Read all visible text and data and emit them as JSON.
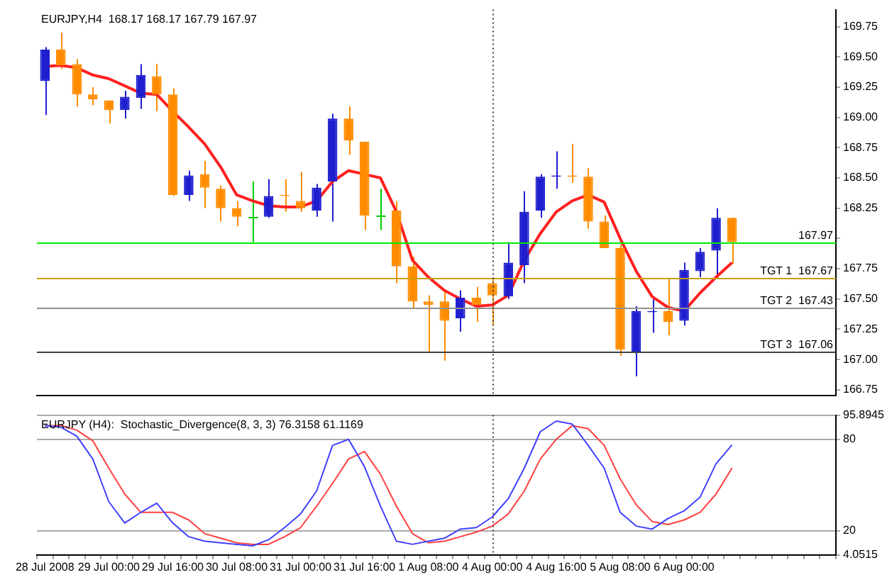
{
  "chart_data": [
    {
      "type": "candlestick",
      "title": "EURJPY,H4  168.17 168.17 167.79 167.97",
      "tick_labels": "y",
      "categories": [
        "28 Jul 2008",
        null,
        null,
        null,
        "29 Jul 00:00",
        null,
        null,
        null,
        "29 Jul 16:00",
        null,
        null,
        null,
        "30 Jul 08:00",
        null,
        null,
        null,
        "31 Jul 00:00",
        null,
        null,
        null,
        "31 Jul 16:00",
        null,
        null,
        null,
        "1 Aug 08:00",
        null,
        null,
        null,
        "4 Aug 00:00",
        null,
        null,
        null,
        "4 Aug 16:00",
        null,
        null,
        null,
        "5 Aug 08:00",
        null,
        null,
        null,
        "6 Aug 00:00",
        null,
        null,
        null,
        null,
        null,
        null,
        null,
        null,
        null
      ],
      "ohlc": [
        [
          169.3,
          169.58,
          169.02,
          169.56
        ],
        [
          169.56,
          169.7,
          169.4,
          169.43
        ],
        [
          169.44,
          169.48,
          169.09,
          169.19
        ],
        [
          169.19,
          169.25,
          169.1,
          169.15
        ],
        [
          169.14,
          169.14,
          168.95,
          169.06
        ],
        [
          169.06,
          169.22,
          168.99,
          169.17
        ],
        [
          169.16,
          169.44,
          169.07,
          169.35
        ],
        [
          169.34,
          169.44,
          169.05,
          169.19
        ],
        [
          169.19,
          169.24,
          168.35,
          168.36
        ],
        [
          168.36,
          168.56,
          168.31,
          168.52
        ],
        [
          168.53,
          168.64,
          168.25,
          168.42
        ],
        [
          168.41,
          168.44,
          168.14,
          168.25
        ],
        [
          168.25,
          168.31,
          168.1,
          168.18
        ],
        [
          168.18,
          168.47,
          167.97,
          168.18
        ],
        [
          168.18,
          168.49,
          168.17,
          168.35
        ],
        [
          168.36,
          168.49,
          168.22,
          168.35
        ],
        [
          168.31,
          168.55,
          168.22,
          168.25
        ],
        [
          168.23,
          168.45,
          168.18,
          168.42
        ],
        [
          168.47,
          169.03,
          168.14,
          168.99
        ],
        [
          168.99,
          169.09,
          168.69,
          168.81
        ],
        [
          168.8,
          168.8,
          168.07,
          168.19
        ],
        [
          168.19,
          168.41,
          168.07,
          168.19
        ],
        [
          168.23,
          168.31,
          167.63,
          167.77
        ],
        [
          167.77,
          167.85,
          167.42,
          167.48
        ],
        [
          167.48,
          167.53,
          167.06,
          167.45
        ],
        [
          167.48,
          167.58,
          166.99,
          167.32
        ],
        [
          167.34,
          167.57,
          167.23,
          167.51
        ],
        [
          167.51,
          167.6,
          167.31,
          167.45
        ],
        [
          167.63,
          167.68,
          167.28,
          167.53
        ],
        [
          167.52,
          167.97,
          167.5,
          167.8
        ],
        [
          167.78,
          168.39,
          167.63,
          168.22
        ],
        [
          168.23,
          168.53,
          168.17,
          168.51
        ],
        [
          168.51,
          168.72,
          168.41,
          168.52
        ],
        [
          168.52,
          168.78,
          168.46,
          168.51
        ],
        [
          168.51,
          168.58,
          168.08,
          168.14
        ],
        [
          168.14,
          168.19,
          167.92,
          167.92
        ],
        [
          167.92,
          167.95,
          167.03,
          167.08
        ],
        [
          167.06,
          167.44,
          166.86,
          167.4
        ],
        [
          167.39,
          167.5,
          167.22,
          167.4
        ],
        [
          167.4,
          167.67,
          167.2,
          167.31
        ],
        [
          167.32,
          167.8,
          167.28,
          167.74
        ],
        [
          167.73,
          167.92,
          167.68,
          167.89
        ],
        [
          167.9,
          168.25,
          167.67,
          168.17
        ],
        [
          168.17,
          168.17,
          167.79,
          167.97
        ],
        null,
        null,
        null,
        null,
        null,
        null
      ],
      "colors": [
        "#1f1fd0",
        "#ff8c00",
        "#ff8c00",
        "#ff8c00",
        "#ff8c00",
        "#1f1fd0",
        "#1f1fd0",
        "#ff8c00",
        "#ff8c00",
        "#1f1fd0",
        "#ff8c00",
        "#ff8c00",
        "#ff8c00",
        "#00cc00",
        "#1f1fd0",
        "#ff8c00",
        "#ff8c00",
        "#1f1fd0",
        "#1f1fd0",
        "#ff8c00",
        "#ff8c00",
        "#00cc00",
        "#ff8c00",
        "#ff8c00",
        "#ff8c00",
        "#ff8c00",
        "#1f1fd0",
        "#ff8c00",
        "#ff8c00",
        "#1f1fd0",
        "#1f1fd0",
        "#1f1fd0",
        "#1f1fd0",
        "#ff8c00",
        "#ff8c00",
        "#ff8c00",
        "#ff8c00",
        "#1f1fd0",
        "#1f1fd0",
        "#ff8c00",
        "#1f1fd0",
        "#1f1fd0",
        "#1f1fd0",
        "#ff8c00",
        null,
        null,
        null,
        null,
        null,
        null
      ],
      "series": [
        {
          "type": "line",
          "color": "#ff2020",
          "values": [
            169.42,
            169.43,
            169.41,
            169.35,
            169.32,
            169.26,
            169.2,
            169.19,
            169.05,
            168.92,
            168.78,
            168.59,
            168.36,
            168.31,
            168.27,
            168.26,
            168.26,
            168.31,
            168.47,
            168.56,
            168.53,
            168.5,
            168.22,
            167.82,
            167.68,
            167.57,
            167.5,
            167.44,
            167.45,
            167.53,
            167.82,
            168.04,
            168.22,
            168.31,
            168.36,
            168.3,
            168.0,
            167.73,
            167.52,
            167.43,
            167.4,
            167.55,
            167.68,
            167.8,
            null,
            null,
            null,
            null,
            null,
            null
          ]
        }
      ],
      "ylim": [
        166.7,
        169.89
      ],
      "yticks": [
        {
          "value": 166.75,
          "label": "166.75"
        },
        {
          "value": 167,
          "label": "167.00"
        },
        {
          "value": 167.25,
          "label": "167.25"
        },
        {
          "value": 167.5,
          "label": "167.50"
        },
        {
          "value": 167.75,
          "label": "167.75"
        },
        {
          "value": 168,
          "label": null
        },
        {
          "value": 168.25,
          "label": "168.25"
        },
        {
          "value": 168.5,
          "label": "168.50"
        },
        {
          "value": 168.75,
          "label": "168.75"
        },
        {
          "value": 169,
          "label": "169.00"
        },
        {
          "value": 169.25,
          "label": "169.25"
        },
        {
          "value": 169.5,
          "label": "169.50"
        },
        {
          "value": 169.75,
          "label": "169.75"
        }
      ],
      "ref_lines": [
        {
          "axis": "y",
          "value": 167.97,
          "label": "167.97",
          "color": "#00ee00"
        },
        {
          "axis": "y",
          "value": 167.67,
          "label": "TGT 1  167.67",
          "color": "#c8a000"
        },
        {
          "axis": "y",
          "value": 167.43,
          "label": "TGT 2  167.43",
          "color": "#909090"
        },
        {
          "axis": "y",
          "value": 167.06,
          "label": "TGT 3  167.06",
          "color": "#404040"
        },
        {
          "axis": "x",
          "value": "4 Aug 00:00",
          "color": "#404040",
          "line_style": "dotted"
        }
      ]
    },
    {
      "type": "line",
      "title": "EURJPY (H4):  Stochastic_Divergence(8, 3, 3) 76.3158 61.1169",
      "grid": "y",
      "categories": [
        "28 Jul 2008",
        null,
        null,
        null,
        "29 Jul 00:00",
        null,
        null,
        null,
        "29 Jul 16:00",
        null,
        null,
        null,
        "30 Jul 08:00",
        null,
        null,
        null,
        "31 Jul 00:00",
        null,
        null,
        null,
        "31 Jul 16:00",
        null,
        null,
        null,
        "1 Aug 08:00",
        null,
        null,
        null,
        "4 Aug 00:00",
        null,
        null,
        null,
        "4 Aug 16:00",
        null,
        null,
        null,
        "5 Aug 08:00",
        null,
        null,
        null,
        "6 Aug 00:00",
        null,
        null,
        null,
        null,
        null,
        null,
        null,
        null,
        null
      ],
      "series": [
        {
          "color": "#4040ff",
          "values": [
            89,
            88,
            82,
            67,
            39,
            25,
            32,
            38,
            25,
            16,
            13,
            12,
            11,
            10,
            14,
            22,
            31,
            46,
            76,
            80,
            62,
            36,
            13,
            11,
            13,
            15,
            21,
            22,
            29,
            41,
            61,
            85,
            92,
            90,
            76,
            61,
            32,
            23,
            21,
            28,
            33,
            42,
            64,
            76.3158,
            null,
            null,
            null,
            null,
            null,
            null
          ]
        },
        {
          "color": "#ff4040",
          "values": [
            89,
            89,
            86,
            79,
            61,
            44,
            32,
            32,
            32,
            27,
            18,
            15,
            12,
            11,
            11,
            16,
            22,
            36,
            51,
            67,
            72,
            57,
            36,
            18,
            12,
            13,
            16,
            19,
            23,
            31,
            46,
            67,
            80,
            89,
            87,
            76,
            54,
            37,
            26,
            24,
            27,
            32,
            44,
            61.1169,
            null,
            null,
            null,
            null,
            null,
            null
          ]
        }
      ],
      "ylim": [
        4.0515,
        95.8945
      ],
      "yticks": [
        4.0515,
        20,
        80,
        95.8945
      ],
      "ref_lines": [
        {
          "axis": "x",
          "value": "4 Aug 00:00",
          "color": "#404040",
          "line_style": "dotted"
        }
      ]
    }
  ]
}
